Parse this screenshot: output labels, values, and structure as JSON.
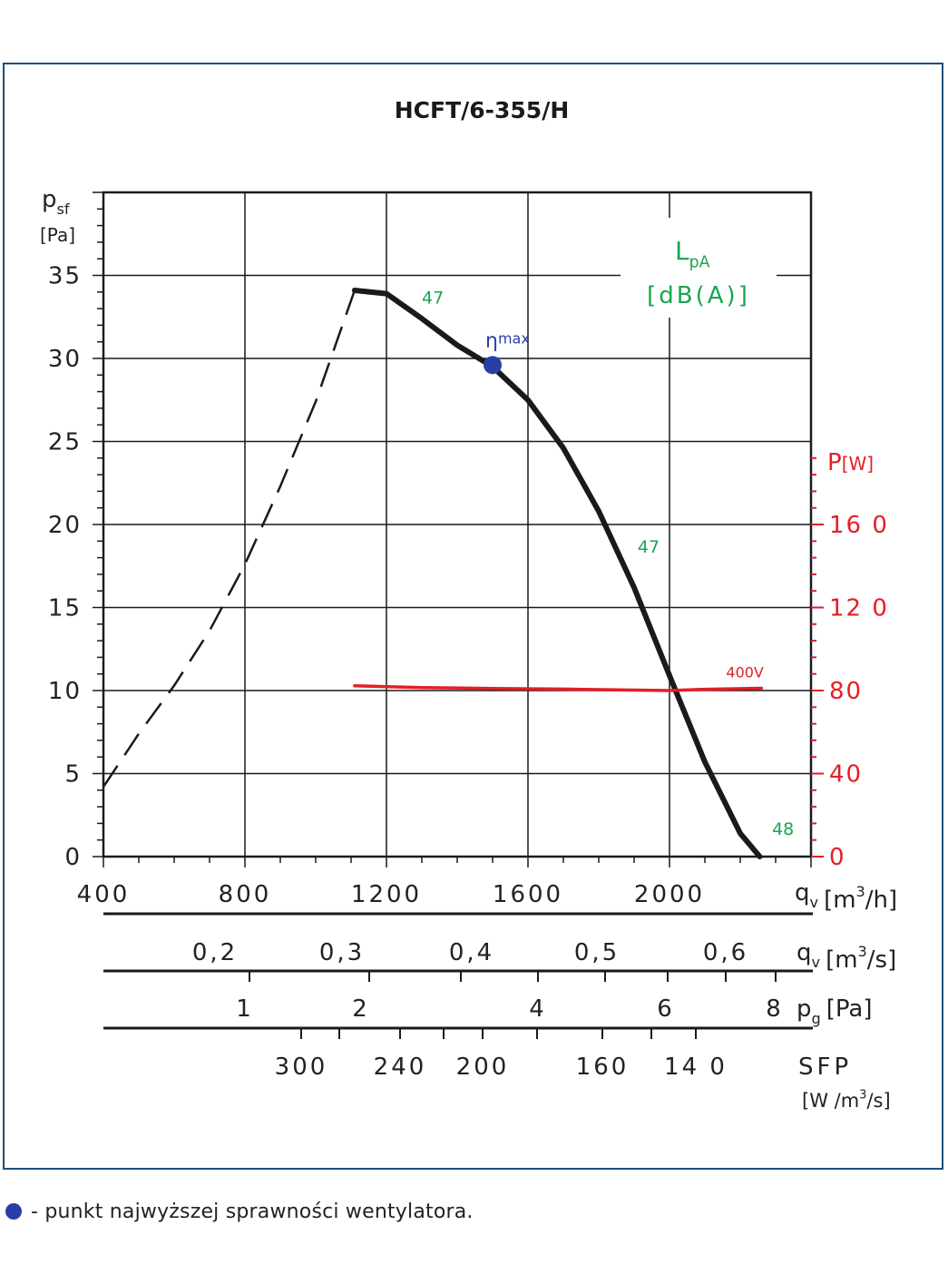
{
  "chart_data": {
    "type": "line",
    "title": "HCFT/6-355/H",
    "y_label": {
      "main": "p",
      "sub": "sf",
      "unit": "[Pa]"
    },
    "y_ticks": [
      "0",
      "5",
      "10",
      "15",
      "20",
      "25",
      "30",
      "35"
    ],
    "ylim": [
      0,
      40
    ],
    "x_label": {
      "main": "q",
      "sub": "v",
      "unit_pre": "[m",
      "sup": "3",
      "unit_post": "/h]"
    },
    "x_ticks": [
      "400",
      "800",
      "1200",
      "1600",
      "2000"
    ],
    "xlim": [
      400,
      2400
    ],
    "grid": true,
    "right_axis": {
      "label": "P",
      "unit": "[W]",
      "ticks": [
        "0",
        "40",
        "80",
        "12 0",
        "16 0"
      ],
      "color": "#e41e26"
    },
    "lpa_label": {
      "main": "L",
      "sub": "pA",
      "unit": "[dB(A)]",
      "color": "#1aa550"
    },
    "pressure_curve": {
      "name": "",
      "color": "#1a1a1a",
      "solid": [
        [
          1110,
          34.1
        ],
        [
          1200,
          33.9
        ],
        [
          1300,
          32.4
        ],
        [
          1400,
          30.8
        ],
        [
          1500,
          29.5
        ],
        [
          1600,
          27.5
        ],
        [
          1700,
          24.6
        ],
        [
          1800,
          20.8
        ],
        [
          1900,
          16.2
        ],
        [
          2000,
          10.9
        ],
        [
          2100,
          5.7
        ],
        [
          2200,
          1.4
        ],
        [
          2255,
          0
        ]
      ],
      "dashed": [
        [
          400,
          4.2
        ],
        [
          500,
          7.4
        ],
        [
          600,
          10.3
        ],
        [
          700,
          13.6
        ],
        [
          800,
          17.6
        ],
        [
          900,
          22.3
        ],
        [
          1000,
          27.4
        ],
        [
          1110,
          34.1
        ]
      ]
    },
    "power_curve": {
      "name": "400V",
      "color": "#e41e26",
      "points": [
        [
          1110,
          82.3
        ],
        [
          1300,
          81.4
        ],
        [
          1500,
          81.0
        ],
        [
          1700,
          80.7
        ],
        [
          1900,
          80.2
        ],
        [
          2000,
          80.0
        ],
        [
          2100,
          80.6
        ],
        [
          2260,
          81.1
        ]
      ]
    },
    "sound_labels": [
      {
        "text": "47",
        "x": 1300,
        "y": 33.3
      },
      {
        "text": "47",
        "x": 1910,
        "y": 18.3
      },
      {
        "text": "48",
        "x": 2290,
        "y": 1.3
      }
    ],
    "eta_max": {
      "label": "η",
      "label_sub": "max",
      "x": 1500,
      "y": 29.6,
      "color": "#2a3ea6"
    },
    "secondary_scales": [
      {
        "name": "qv_m3s",
        "label": {
          "main": "q",
          "sub": "v",
          "unit_pre": "[m",
          "sup": "3",
          "unit_post": "/s]"
        },
        "ticks": [
          {
            "label": "0,2",
            "value": 0.2
          },
          {
            "label": "0,3",
            "value": 0.3
          },
          {
            "label": "0,4",
            "value": 0.4
          },
          {
            "label": "0,5",
            "value": 0.5
          },
          {
            "label": "0,6",
            "value": 0.6
          }
        ]
      },
      {
        "name": "pg_pa",
        "label": {
          "main": "p",
          "sub": "g",
          "unit": "[Pa]"
        },
        "ticks": [
          {
            "label": "1",
            "value": 1
          },
          {
            "label": "2",
            "value": 2
          },
          {
            "label": "4",
            "value": 4
          },
          {
            "label": "6",
            "value": 6
          },
          {
            "label": "8",
            "value": 8
          }
        ]
      },
      {
        "name": "sfp",
        "label": {
          "main": "SFP",
          "unit_pre": "[W /m",
          "sup": "3",
          "unit_post": "/s]"
        },
        "ticks": [
          {
            "label": "300",
            "value": 300
          },
          {
            "label": "240",
            "value": 240
          },
          {
            "label": "200",
            "value": 200
          },
          {
            "label": "160",
            "value": 160
          },
          {
            "label": "14 0",
            "value": 140
          }
        ]
      }
    ]
  },
  "footnote": {
    "text": "- punkt najwyższej sprawności wentylatora.",
    "dot_color": "#2a3ea6"
  }
}
